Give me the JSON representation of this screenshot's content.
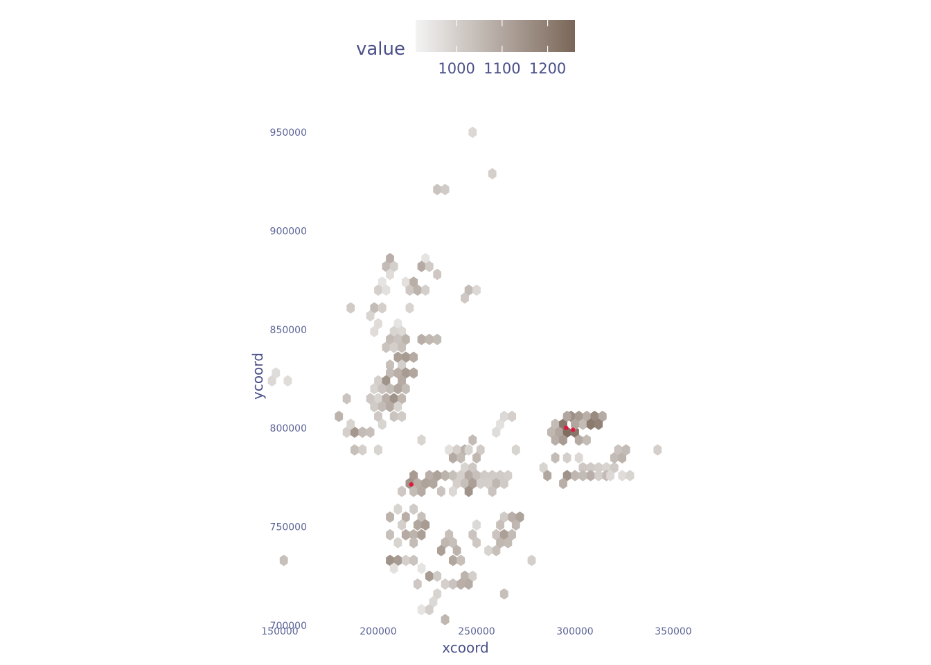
{
  "chart_data": {
    "type": "heatmap",
    "subtype": "hexbin",
    "title": "",
    "xlabel": "xcoord",
    "ylabel": "ycoord",
    "xlim": [
      150000,
      350000
    ],
    "ylim": [
      700000,
      950000
    ],
    "x_ticks": [
      150000,
      200000,
      250000,
      300000,
      350000
    ],
    "y_ticks": [
      700000,
      750000,
      800000,
      850000,
      900000,
      950000
    ],
    "x_tick_labels": [
      "150000",
      "200000",
      "250000",
      "300000",
      "350000"
    ],
    "y_tick_labels": [
      "700000",
      "750000",
      "800000",
      "850000",
      "900000",
      "950000"
    ],
    "grid": false,
    "legend": {
      "title": "value",
      "placement": "top",
      "range": [
        910,
        1260
      ],
      "ticks": [
        1000,
        1100,
        1200
      ],
      "tick_labels": [
        "1000",
        "1100",
        "1200"
      ],
      "color_low": "#f4f4f4",
      "color_high": "#7a6658"
    },
    "points_color": "#e3163c",
    "hex_cells": [
      [
        248000,
        950000,
        980
      ],
      [
        258000,
        929000,
        1000
      ],
      [
        230000,
        921000,
        1030
      ],
      [
        234000,
        921000,
        1010
      ],
      [
        206000,
        886000,
        1080
      ],
      [
        224000,
        886000,
        950
      ],
      [
        204000,
        882000,
        1050
      ],
      [
        208000,
        882000,
        1000
      ],
      [
        222000,
        882000,
        1090
      ],
      [
        226000,
        882000,
        1010
      ],
      [
        206000,
        878000,
        970
      ],
      [
        230000,
        878000,
        1020
      ],
      [
        202000,
        874000,
        950
      ],
      [
        214000,
        874000,
        960
      ],
      [
        218000,
        874000,
        1080
      ],
      [
        200000,
        870000,
        1000
      ],
      [
        204000,
        870000,
        960
      ],
      [
        216000,
        870000,
        1020
      ],
      [
        220000,
        870000,
        1070
      ],
      [
        224000,
        870000,
        1000
      ],
      [
        246000,
        870000,
        1050
      ],
      [
        250000,
        870000,
        980
      ],
      [
        244000,
        866000,
        1020
      ],
      [
        186000,
        861000,
        1010
      ],
      [
        198000,
        861000,
        1050
      ],
      [
        202000,
        861000,
        1000
      ],
      [
        216000,
        861000,
        990
      ],
      [
        196000,
        857000,
        990
      ],
      [
        200000,
        853000,
        970
      ],
      [
        210000,
        853000,
        950
      ],
      [
        198000,
        849000,
        970
      ],
      [
        208000,
        849000,
        990
      ],
      [
        212000,
        849000,
        980
      ],
      [
        206000,
        845000,
        1050
      ],
      [
        210000,
        845000,
        1030
      ],
      [
        214000,
        845000,
        1070
      ],
      [
        222000,
        845000,
        1080
      ],
      [
        226000,
        845000,
        1060
      ],
      [
        230000,
        845000,
        1050
      ],
      [
        204000,
        841000,
        1030
      ],
      [
        208000,
        841000,
        1000
      ],
      [
        212000,
        841000,
        1040
      ],
      [
        210000,
        836000,
        1120
      ],
      [
        214000,
        836000,
        1130
      ],
      [
        218000,
        836000,
        1090
      ],
      [
        206000,
        832000,
        1040
      ],
      [
        212000,
        832000,
        1000
      ],
      [
        206000,
        828000,
        1050
      ],
      [
        210000,
        828000,
        1080
      ],
      [
        214000,
        828000,
        1130
      ],
      [
        218000,
        828000,
        1100
      ],
      [
        148000,
        828000,
        970
      ],
      [
        200000,
        824000,
        1000
      ],
      [
        204000,
        824000,
        1150
      ],
      [
        212000,
        824000,
        1090
      ],
      [
        146000,
        824000,
        980
      ],
      [
        154000,
        824000,
        970
      ],
      [
        198000,
        820000,
        990
      ],
      [
        202000,
        820000,
        1030
      ],
      [
        206000,
        820000,
        1050
      ],
      [
        210000,
        820000,
        1100
      ],
      [
        214000,
        820000,
        1050
      ],
      [
        184000,
        815000,
        1030
      ],
      [
        196000,
        815000,
        1020
      ],
      [
        200000,
        815000,
        990
      ],
      [
        204000,
        815000,
        1080
      ],
      [
        208000,
        815000,
        1150
      ],
      [
        212000,
        815000,
        1060
      ],
      [
        198000,
        811000,
        1010
      ],
      [
        202000,
        811000,
        1050
      ],
      [
        206000,
        811000,
        1090
      ],
      [
        210000,
        811000,
        990
      ],
      [
        200000,
        806000,
        1020
      ],
      [
        208000,
        806000,
        1030
      ],
      [
        212000,
        806000,
        1010
      ],
      [
        180000,
        806000,
        1070
      ],
      [
        184000,
        798000,
        1000
      ],
      [
        188000,
        798000,
        1140
      ],
      [
        192000,
        798000,
        1050
      ],
      [
        196000,
        798000,
        1040
      ],
      [
        186000,
        802000,
        990
      ],
      [
        202000,
        802000,
        990
      ],
      [
        260000,
        798000,
        970
      ],
      [
        262000,
        802000,
        960
      ],
      [
        264000,
        806000,
        980
      ],
      [
        268000,
        806000,
        1000
      ],
      [
        222000,
        794000,
        990
      ],
      [
        236000,
        789000,
        960
      ],
      [
        240000,
        789000,
        1000
      ],
      [
        244000,
        789000,
        1070
      ],
      [
        248000,
        794000,
        1050
      ],
      [
        246000,
        789000,
        990
      ],
      [
        252000,
        789000,
        1010
      ],
      [
        188000,
        789000,
        1040
      ],
      [
        192000,
        789000,
        1000
      ],
      [
        200000,
        789000,
        990
      ],
      [
        270000,
        789000,
        990
      ],
      [
        238000,
        785000,
        1090
      ],
      [
        242000,
        785000,
        1050
      ],
      [
        250000,
        785000,
        1060
      ],
      [
        244000,
        780000,
        990
      ],
      [
        248000,
        780000,
        1020
      ],
      [
        218000,
        776000,
        1130
      ],
      [
        226000,
        776000,
        1080
      ],
      [
        230000,
        776000,
        1110
      ],
      [
        234000,
        776000,
        1070
      ],
      [
        238000,
        776000,
        1040
      ],
      [
        242000,
        776000,
        1000
      ],
      [
        246000,
        776000,
        1090
      ],
      [
        250000,
        776000,
        1040
      ],
      [
        254000,
        776000,
        1010
      ],
      [
        258000,
        776000,
        1010
      ],
      [
        262000,
        776000,
        1010
      ],
      [
        266000,
        776000,
        1000
      ],
      [
        216000,
        772000,
        1150
      ],
      [
        220000,
        772000,
        1080
      ],
      [
        224000,
        772000,
        1110
      ],
      [
        228000,
        772000,
        1100
      ],
      [
        240000,
        772000,
        1000
      ],
      [
        244000,
        772000,
        1040
      ],
      [
        248000,
        772000,
        1120
      ],
      [
        252000,
        772000,
        1000
      ],
      [
        256000,
        772000,
        1000
      ],
      [
        260000,
        772000,
        1060
      ],
      [
        264000,
        772000,
        1010
      ],
      [
        212000,
        768000,
        1020
      ],
      [
        218000,
        768000,
        1050
      ],
      [
        222000,
        768000,
        1090
      ],
      [
        232000,
        768000,
        1030
      ],
      [
        238000,
        768000,
        980
      ],
      [
        246000,
        768000,
        1150
      ],
      [
        258000,
        768000,
        1030
      ],
      [
        206000,
        755000,
        1070
      ],
      [
        210000,
        759000,
        990
      ],
      [
        214000,
        755000,
        1080
      ],
      [
        218000,
        759000,
        1010
      ],
      [
        222000,
        755000,
        1040
      ],
      [
        264000,
        755000,
        1010
      ],
      [
        268000,
        755000,
        1080
      ],
      [
        272000,
        755000,
        1110
      ],
      [
        212000,
        751000,
        1000
      ],
      [
        220000,
        751000,
        1100
      ],
      [
        224000,
        751000,
        1130
      ],
      [
        250000,
        751000,
        980
      ],
      [
        262000,
        751000,
        1040
      ],
      [
        270000,
        751000,
        1060
      ],
      [
        206000,
        746000,
        1040
      ],
      [
        214000,
        746000,
        1090
      ],
      [
        218000,
        746000,
        1070
      ],
      [
        222000,
        746000,
        1120
      ],
      [
        236000,
        746000,
        1040
      ],
      [
        248000,
        746000,
        1030
      ],
      [
        260000,
        746000,
        1030
      ],
      [
        264000,
        746000,
        1120
      ],
      [
        268000,
        746000,
        1050
      ],
      [
        210000,
        742000,
        990
      ],
      [
        218000,
        742000,
        1050
      ],
      [
        234000,
        742000,
        1060
      ],
      [
        238000,
        742000,
        1040
      ],
      [
        250000,
        742000,
        1020
      ],
      [
        262000,
        742000,
        1060
      ],
      [
        266000,
        742000,
        1050
      ],
      [
        232000,
        738000,
        1120
      ],
      [
        240000,
        738000,
        1070
      ],
      [
        256000,
        738000,
        990
      ],
      [
        260000,
        738000,
        1040
      ],
      [
        206000,
        733000,
        1150
      ],
      [
        210000,
        733000,
        1130
      ],
      [
        214000,
        733000,
        1000
      ],
      [
        218000,
        733000,
        1030
      ],
      [
        238000,
        733000,
        1100
      ],
      [
        242000,
        733000,
        1040
      ],
      [
        152000,
        733000,
        1040
      ],
      [
        278000,
        733000,
        1000
      ],
      [
        208000,
        729000,
        960
      ],
      [
        222000,
        729000,
        950
      ],
      [
        226000,
        725000,
        1130
      ],
      [
        230000,
        725000,
        1010
      ],
      [
        244000,
        725000,
        1070
      ],
      [
        248000,
        725000,
        1000
      ],
      [
        220000,
        721000,
        1020
      ],
      [
        234000,
        721000,
        1000
      ],
      [
        238000,
        721000,
        1030
      ],
      [
        242000,
        721000,
        1080
      ],
      [
        246000,
        721000,
        1090
      ],
      [
        230000,
        716000,
        990
      ],
      [
        264000,
        716000,
        1040
      ],
      [
        228000,
        712000,
        980
      ],
      [
        222000,
        708000,
        950
      ],
      [
        226000,
        708000,
        1000
      ],
      [
        234000,
        703000,
        1060
      ],
      [
        290000,
        802000,
        1050
      ],
      [
        294000,
        802000,
        1220
      ],
      [
        298000,
        806000,
        1160
      ],
      [
        302000,
        806000,
        1130
      ],
      [
        306000,
        806000,
        1080
      ],
      [
        310000,
        806000,
        1170
      ],
      [
        314000,
        806000,
        1090
      ],
      [
        296000,
        806000,
        1100
      ],
      [
        288000,
        798000,
        1060
      ],
      [
        292000,
        798000,
        1100
      ],
      [
        296000,
        798000,
        1240
      ],
      [
        300000,
        798000,
        1220
      ],
      [
        304000,
        802000,
        1050
      ],
      [
        308000,
        802000,
        1210
      ],
      [
        312000,
        802000,
        1190
      ],
      [
        300000,
        802000,
        1100
      ],
      [
        290000,
        794000,
        1080
      ],
      [
        294000,
        794000,
        1130
      ],
      [
        302000,
        794000,
        1090
      ],
      [
        306000,
        794000,
        1050
      ],
      [
        290000,
        785000,
        1050
      ],
      [
        296000,
        785000,
        1000
      ],
      [
        284000,
        780000,
        990
      ],
      [
        286000,
        776000,
        1100
      ],
      [
        296000,
        776000,
        1150
      ],
      [
        294000,
        772000,
        1080
      ],
      [
        304000,
        780000,
        1020
      ],
      [
        308000,
        780000,
        1010
      ],
      [
        312000,
        780000,
        1000
      ],
      [
        316000,
        780000,
        990
      ],
      [
        320000,
        780000,
        1010
      ],
      [
        302000,
        785000,
        980
      ],
      [
        300000,
        776000,
        1060
      ],
      [
        304000,
        776000,
        1050
      ],
      [
        308000,
        776000,
        1080
      ],
      [
        312000,
        776000,
        1000
      ],
      [
        316000,
        776000,
        1050
      ],
      [
        320000,
        785000,
        1050
      ],
      [
        322000,
        789000,
        1030
      ],
      [
        324000,
        785000,
        1070
      ],
      [
        326000,
        789000,
        1050
      ],
      [
        318000,
        776000,
        980
      ],
      [
        324000,
        776000,
        970
      ],
      [
        328000,
        776000,
        990
      ],
      [
        342000,
        789000,
        1000
      ]
    ],
    "red_points": [
      [
        216800,
        771500
      ],
      [
        295500,
        800200
      ],
      [
        299000,
        799200
      ]
    ]
  }
}
